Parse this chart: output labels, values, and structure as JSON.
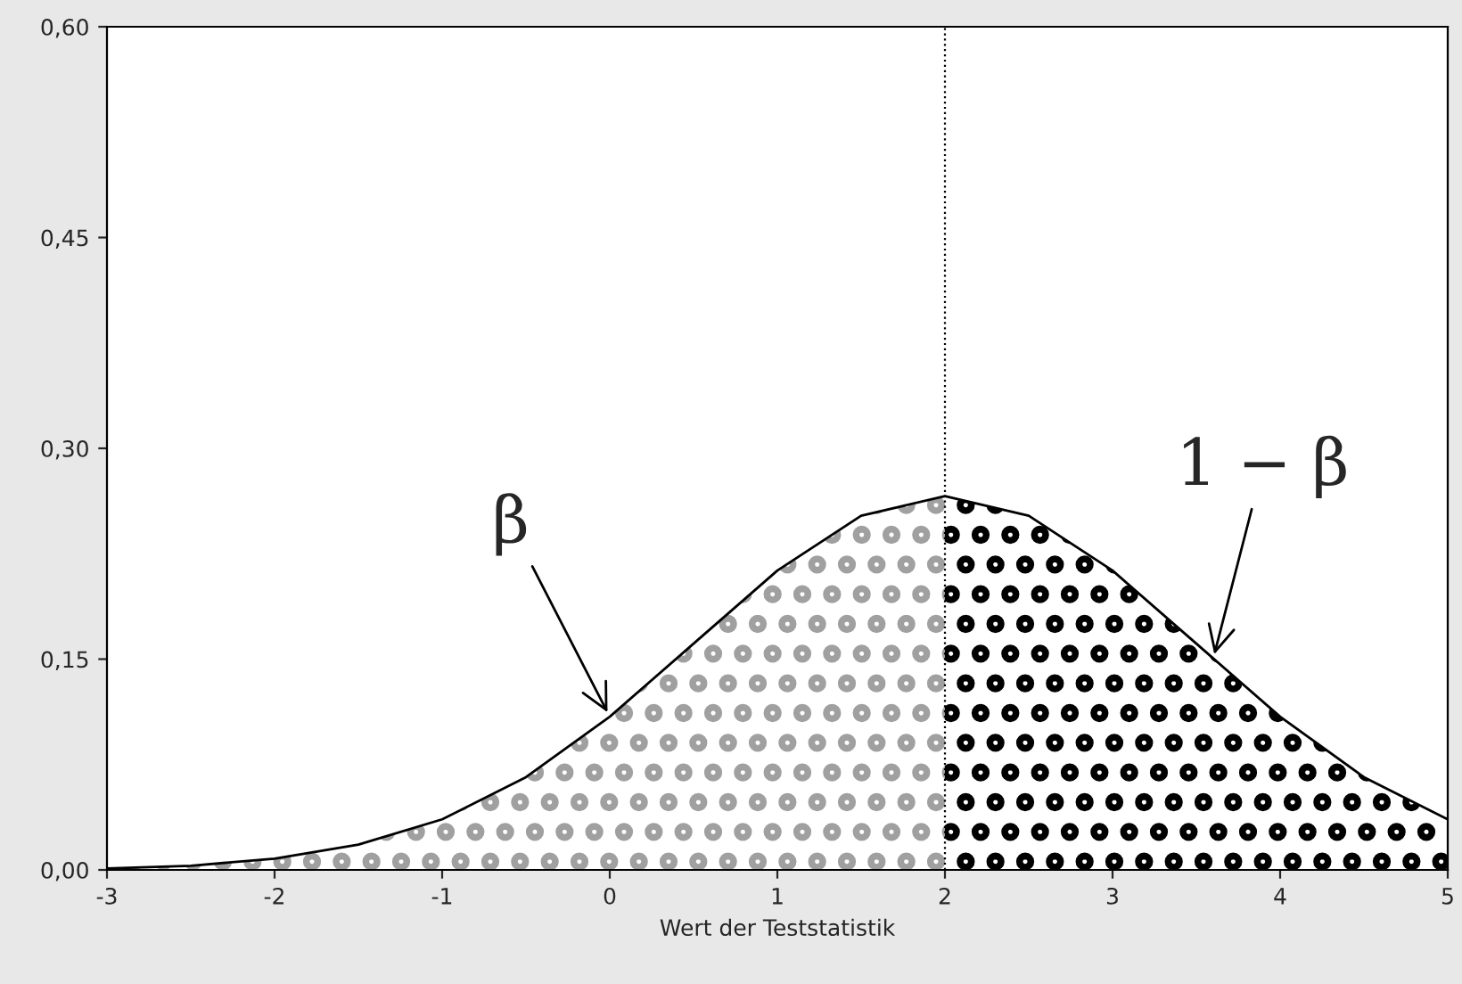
{
  "chart_data": {
    "type": "line",
    "xlabel": "Wert der Teststatistik",
    "series": [
      {
        "color": "#000000",
        "x": [
          -3,
          -2.5,
          -2,
          -1.5,
          -1,
          -0.5,
          0,
          0.5,
          1,
          1.5,
          2,
          2.5,
          3,
          3.5,
          4,
          4.5,
          5
        ],
        "values": [
          0.001,
          0.003,
          0.008,
          0.018,
          0.036,
          0.066,
          0.109,
          0.161,
          0.213,
          0.252,
          0.266,
          0.252,
          0.213,
          0.161,
          0.109,
          0.066,
          0.036
        ]
      },
      {
        "type": "area",
        "color": "#a0a0a0",
        "x": [
          -3,
          -2.5,
          -2,
          -1.5,
          -1,
          -0.5,
          0,
          0.5,
          1,
          1.5,
          2
        ],
        "values": [
          0.001,
          0.003,
          0.008,
          0.018,
          0.036,
          0.066,
          0.109,
          0.161,
          0.213,
          0.252,
          0.266
        ]
      },
      {
        "type": "area",
        "color": "#000000",
        "x": [
          2,
          2.5,
          3,
          3.5,
          4,
          4.5,
          5
        ],
        "values": [
          0.266,
          0.252,
          0.213,
          0.161,
          0.109,
          0.066,
          0.036
        ]
      }
    ],
    "xlim": [
      -3,
      5
    ],
    "xticks": [
      -3,
      -2,
      -1,
      0,
      1,
      2,
      3,
      4,
      5
    ],
    "ylim": [
      0,
      0.6
    ],
    "yticks": [
      {
        "value": 0,
        "label": "0,00"
      },
      {
        "value": 0.15,
        "label": "0,15"
      },
      {
        "value": 0.3,
        "label": "0,30"
      },
      {
        "value": 0.45,
        "label": "0,45"
      },
      {
        "value": 0.6,
        "label": "0,60"
      }
    ],
    "ref_lines": [
      {
        "axis": "x",
        "value": 2,
        "color": "#000000",
        "line_style": "dotted"
      }
    ],
    "annotations": [
      {
        "text": "β",
        "x": 0,
        "y": 0.109
      },
      {
        "text": "1 − β",
        "x": 3.6,
        "y": 0.15
      }
    ],
    "grid": false,
    "legend": false
  }
}
